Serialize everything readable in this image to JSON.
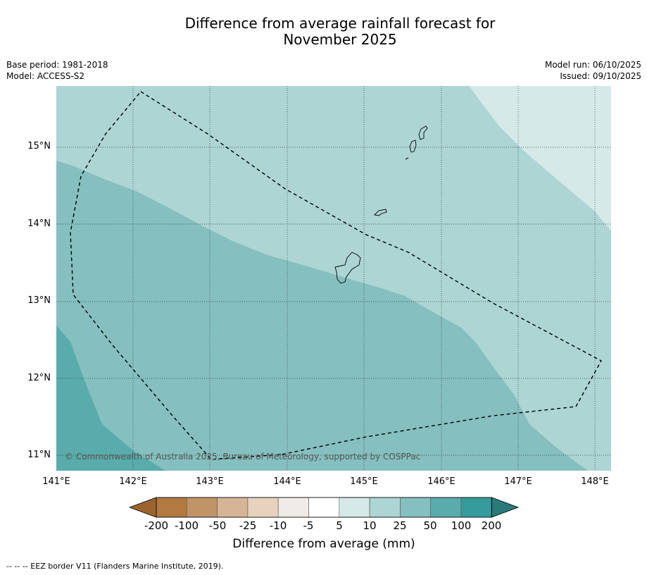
{
  "title_line1": "Difference from average rainfall forecast for",
  "title_line2": "November 2025",
  "meta_left": {
    "base_period": "Base period: 1981-2018",
    "model": "Model: ACCESS-S2"
  },
  "meta_right": {
    "model_run": "Model run: 06/10/2025",
    "issued": "Issued: 09/10/2025"
  },
  "map": {
    "latitude_labels": [
      "15°N",
      "14°N",
      "13°N",
      "12°N",
      "11°N"
    ],
    "longitude_labels": [
      "141°E",
      "142°E",
      "143°E",
      "144°E",
      "145°E",
      "146°E",
      "147°E",
      "148°E"
    ],
    "copyright": "© Commonwealth of Australia 2025, Bureau of Meteorology, supported by COSPPac",
    "colors": {
      "band_5_10": "#d5e9e8",
      "band_10_25": "#acd5d4",
      "band_25_50": "#85bfbf",
      "band_50_100": "#5aabab"
    }
  },
  "colorbar": {
    "tick_labels": [
      "-200",
      "-100",
      "-50",
      "-25",
      "-10",
      "-5",
      "5",
      "10",
      "25",
      "50",
      "100",
      "200"
    ],
    "colors": [
      "#9b642f",
      "#b07a41",
      "#c19468",
      "#d6b596",
      "#e7d2be",
      "#f0ebe6",
      "#ffffff",
      "#d5e9e8",
      "#acd5d4",
      "#85bfbf",
      "#5aabab",
      "#359b9b",
      "#2a7a7a"
    ],
    "label": "Difference from average (mm)"
  },
  "footer": "--  --  -- EEZ border V11 (Flanders Marine Institute, 2019)."
}
